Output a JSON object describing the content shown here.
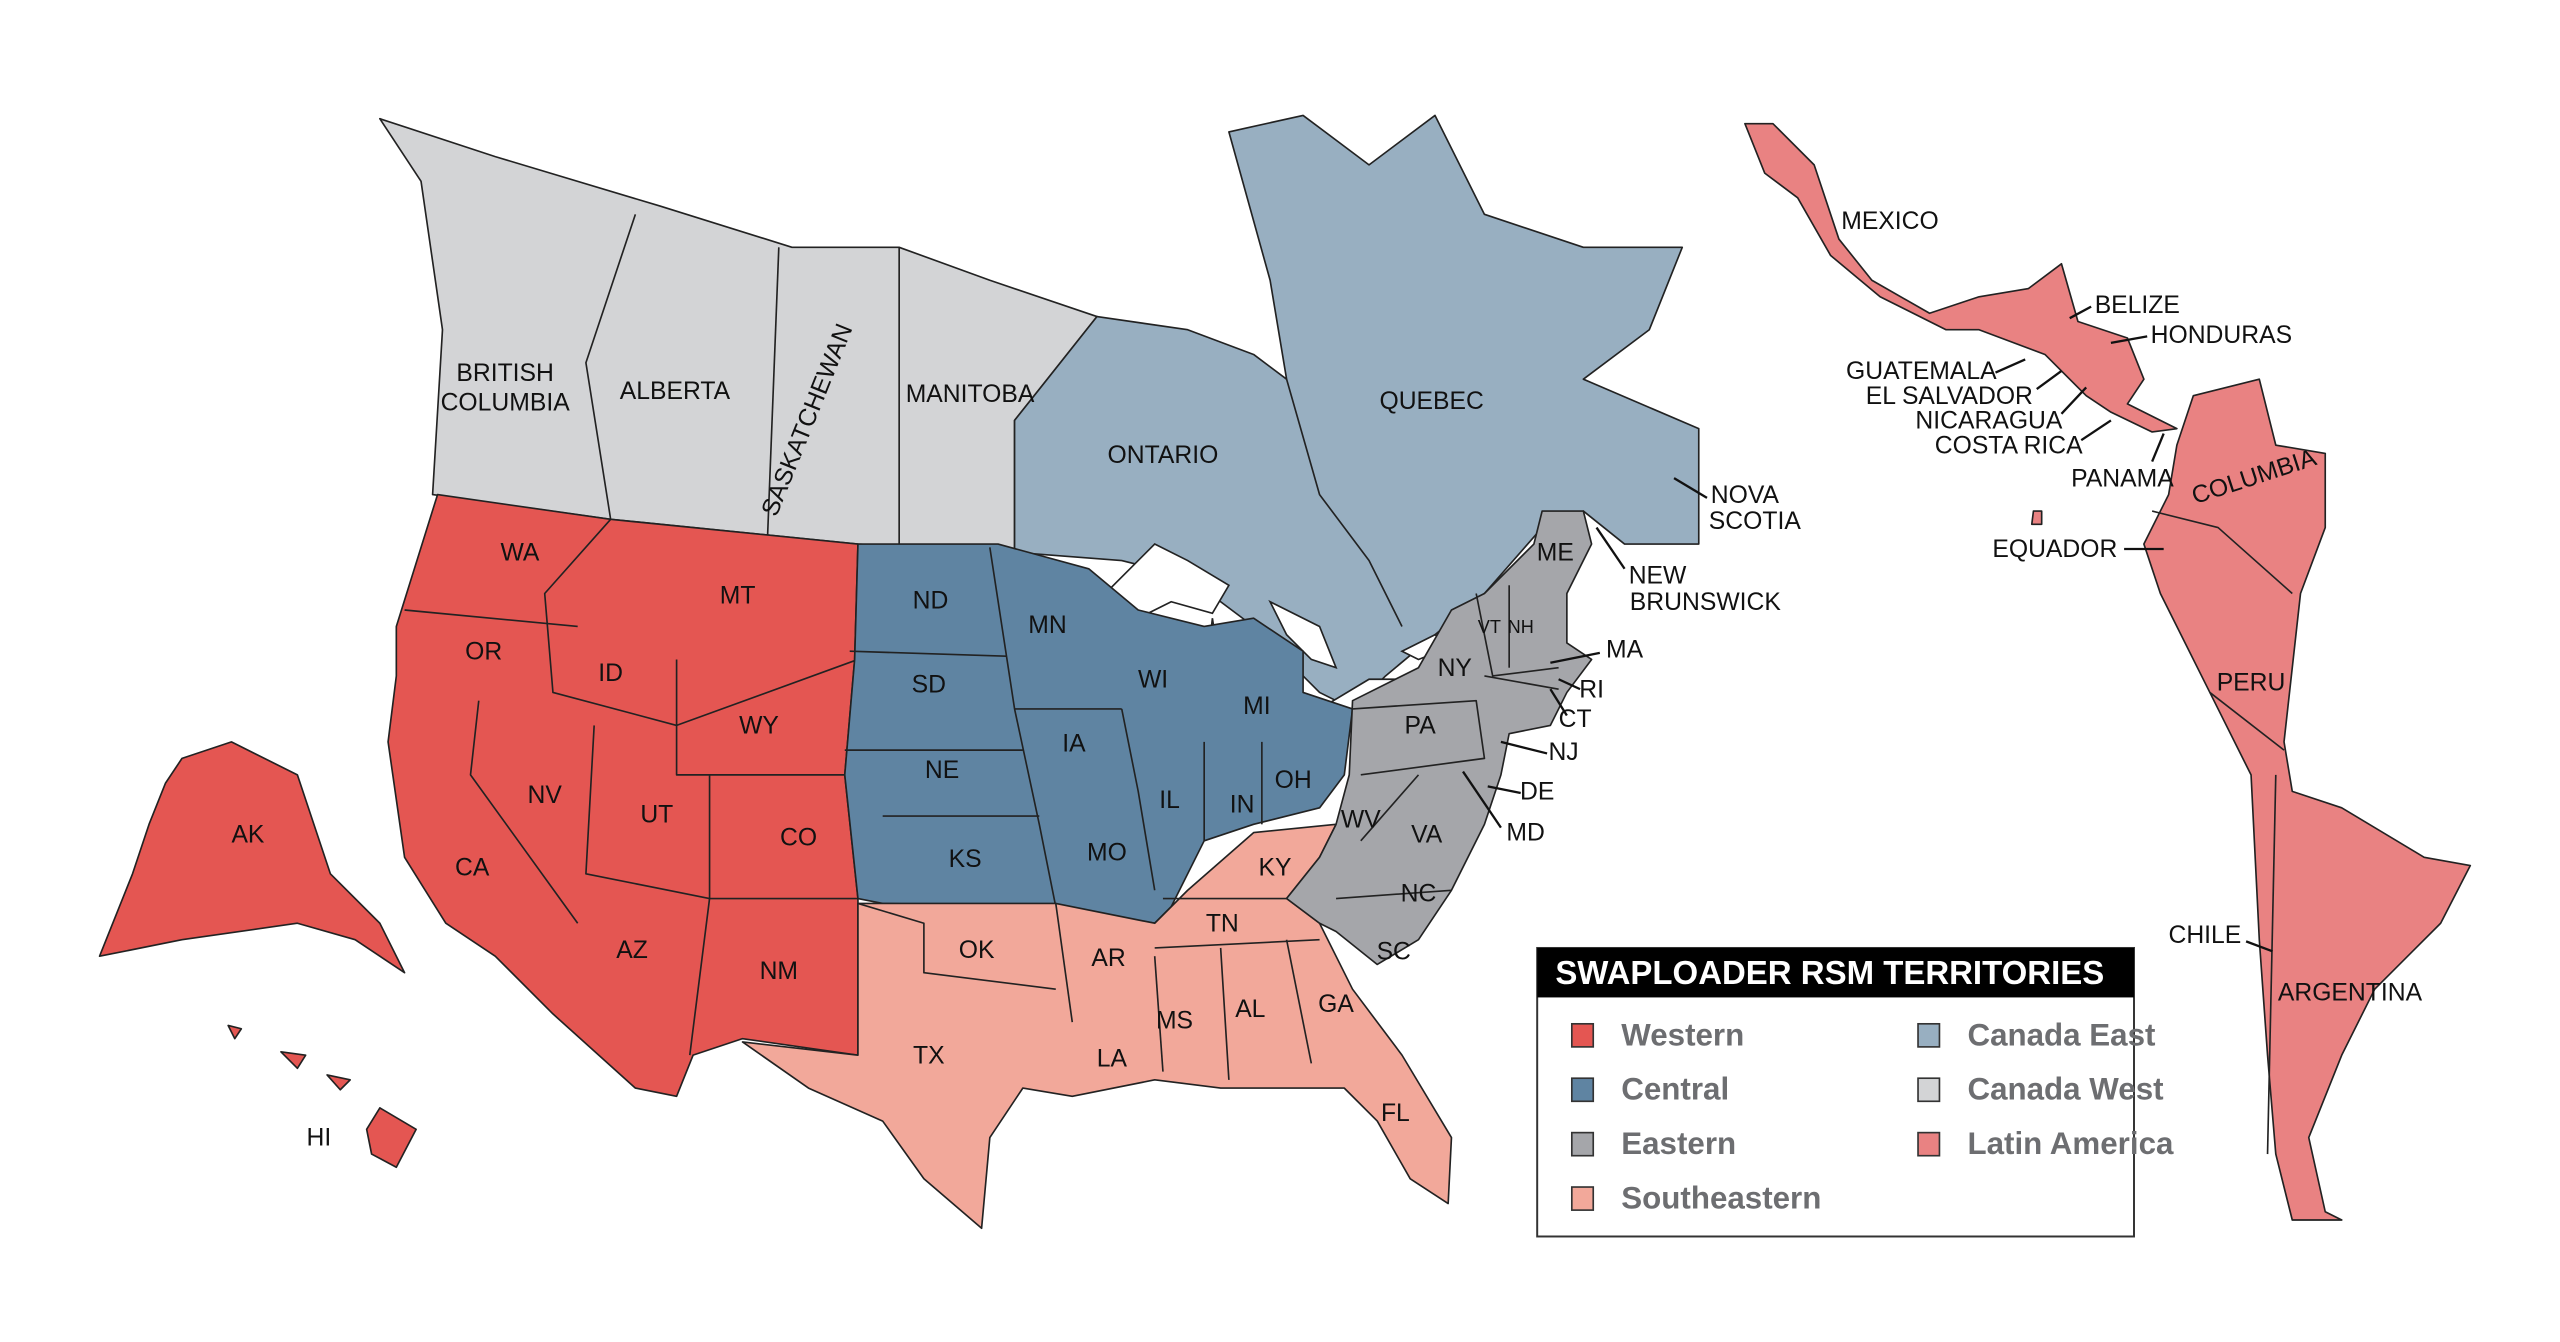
{
  "legend": {
    "title": "SWAPLOADER RSM TERRITORIES",
    "items": [
      {
        "label": "Western",
        "color": "#e45652"
      },
      {
        "label": "Central",
        "color": "#5f84a2"
      },
      {
        "label": "Eastern",
        "color": "#a5a6aa"
      },
      {
        "label": "Southeastern",
        "color": "#f2a89a"
      },
      {
        "label": "Canada East",
        "color": "#98afc1"
      },
      {
        "label": "Canada West",
        "color": "#d3d4d6"
      },
      {
        "label": "Latin America",
        "color": "#e98282"
      }
    ]
  },
  "western": [
    "WA",
    "OR",
    "ID",
    "MT",
    "WY",
    "NV",
    "UT",
    "CO",
    "CA",
    "AZ",
    "NM",
    "AK",
    "HI"
  ],
  "central": [
    "ND",
    "MN",
    "SD",
    "WI",
    "MI",
    "IA",
    "NE",
    "IL",
    "IN",
    "OH",
    "KS",
    "MO"
  ],
  "southeastern": [
    "KY",
    "OK",
    "TN",
    "AR",
    "TX",
    "MS",
    "AL",
    "GA",
    "LA",
    "FL"
  ],
  "eastern": [
    "ME",
    "VT",
    "NH",
    "NY",
    "PA",
    "WV",
    "VA",
    "NC",
    "SC",
    "MA",
    "RI",
    "CT",
    "NJ",
    "DE",
    "MD"
  ],
  "canada_west": [
    "BRITISH",
    "COLUMBIA",
    "ALBERTA",
    "SASKATCHEWAN",
    "MANITOBA"
  ],
  "canada_east": [
    "ONTARIO",
    "QUEBEC",
    "NOVA",
    "SCOTIA",
    "NEW",
    "BRUNSWICK"
  ],
  "latin_america": [
    "MEXICO",
    "BELIZE",
    "HONDURAS",
    "GUATEMALA",
    "EL SALVADOR",
    "NICARAGUA",
    "COSTA RICA",
    "PANAMA",
    "COLUMBIA",
    "EQUADOR",
    "PERU",
    "CHILE",
    "ARGENTINA"
  ]
}
